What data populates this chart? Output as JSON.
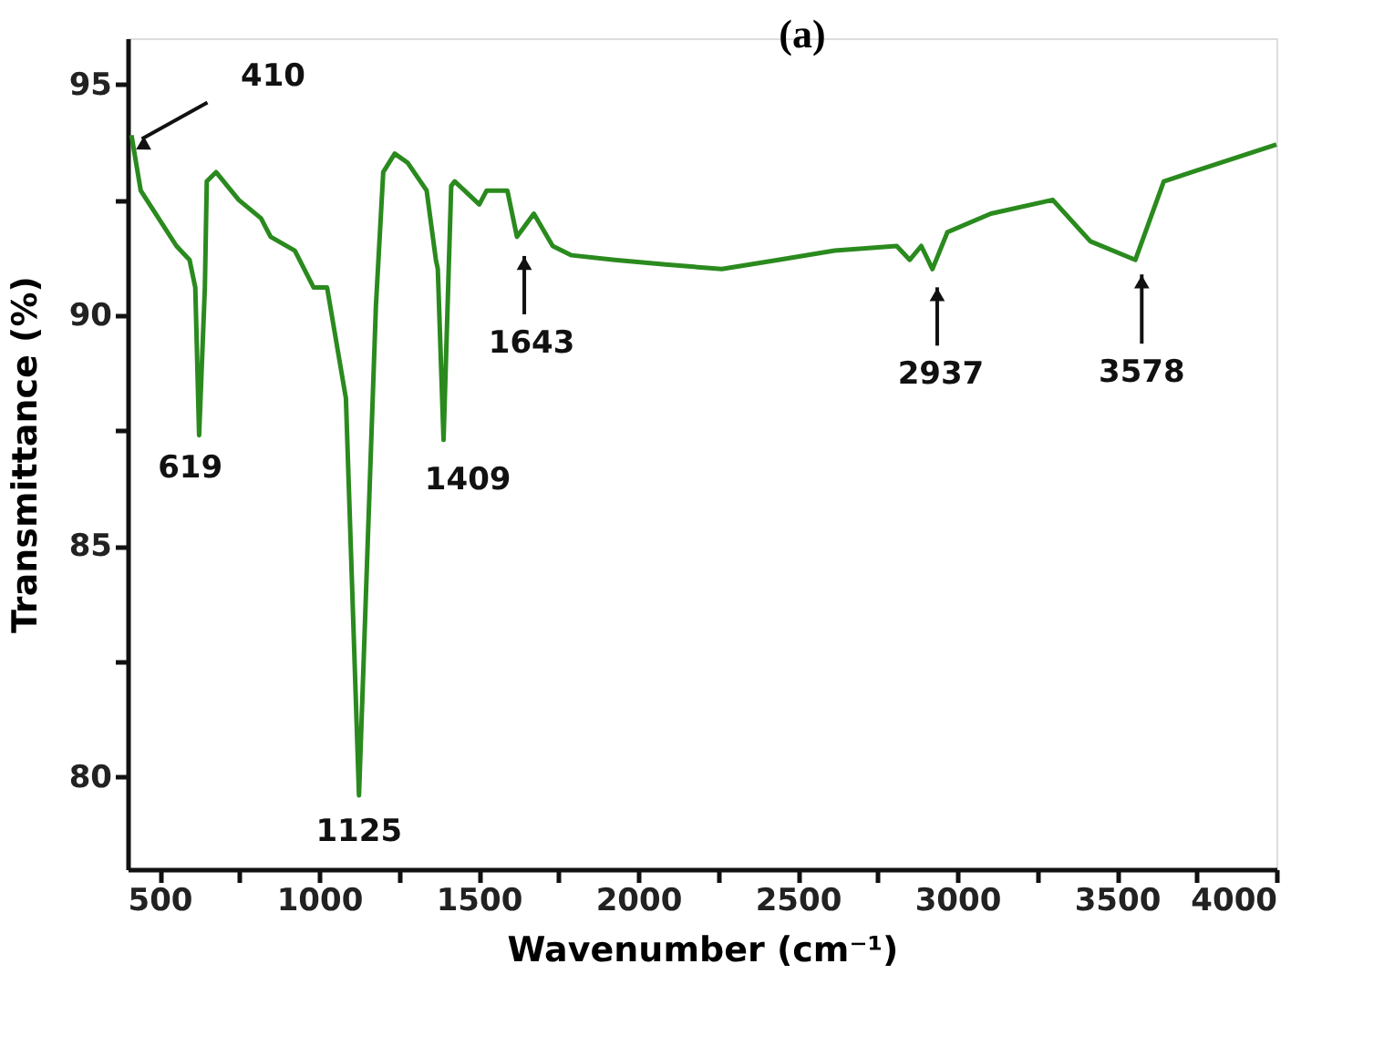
{
  "chart_data": {
    "type": "line",
    "title": "(a)",
    "xlabel": "Wavenumber (cm⁻¹)",
    "ylabel": "Transmittance (%)",
    "x": [
      412,
      441,
      553,
      594,
      612,
      624,
      642,
      648,
      677,
      748,
      818,
      848,
      924,
      983,
      1025,
      1084,
      1125,
      1178,
      1201,
      1237,
      1278,
      1337,
      1366,
      1372,
      1390,
      1414,
      1425,
      1502,
      1525,
      1590,
      1620,
      1673,
      1732,
      1791,
      1926,
      2085,
      2262,
      2439,
      2616,
      2810,
      2851,
      2887,
      2922,
      2969,
      3105,
      3299,
      3417,
      3558,
      3647,
      3735,
      4000
    ],
    "values": [
      93.9,
      92.7,
      91.5,
      91.2,
      90.6,
      87.4,
      90.6,
      92.9,
      93.1,
      92.5,
      92.1,
      91.7,
      91.4,
      90.6,
      90.6,
      88.2,
      79.6,
      90.2,
      93.1,
      93.5,
      93.3,
      92.7,
      91.2,
      91.0,
      87.3,
      92.8,
      92.9,
      92.4,
      92.7,
      92.7,
      91.7,
      92.2,
      91.5,
      91.3,
      91.2,
      91.1,
      91.0,
      91.2,
      91.4,
      91.5,
      91.2,
      91.5,
      91.0,
      91.8,
      92.2,
      92.5,
      91.6,
      91.2,
      92.9,
      93.1,
      93.7
    ],
    "color": "#2a8a1e",
    "xlim": [
      400,
      4000
    ],
    "xticks": [
      500,
      {
        "value": 750,
        "label": null
      },
      1000,
      {
        "value": 1250,
        "label": null
      },
      1500,
      {
        "value": 1750,
        "label": null
      },
      2000,
      {
        "value": 2250,
        "label": null
      },
      2500,
      {
        "value": 2750,
        "label": null
      },
      3000,
      {
        "value": 3250,
        "label": null
      },
      3500,
      {
        "value": 3750,
        "label": null
      },
      4000
    ],
    "ylim": [
      78,
      96
    ],
    "yticks": [
      80,
      {
        "value": 82.5,
        "label": null
      },
      85,
      {
        "value": 87.5,
        "label": null
      },
      90,
      {
        "value": 92.5,
        "label": null
      },
      95
    ],
    "grid": false,
    "marker": "none",
    "line_style": "solid",
    "annotations": [
      {
        "text": "410",
        "x": 410,
        "y": 93.9
      },
      {
        "text": "619",
        "x": 619,
        "y": 87.4
      },
      {
        "text": "1125",
        "x": 1125,
        "y": 79.6
      },
      {
        "text": "1409",
        "x": 1409,
        "y": 87.3
      },
      {
        "text": "1643",
        "x": 1643,
        "y": 91.6
      },
      {
        "text": "2937",
        "x": 2937,
        "y": 91.0
      },
      {
        "text": "3578",
        "x": 3578,
        "y": 91.2
      }
    ]
  }
}
